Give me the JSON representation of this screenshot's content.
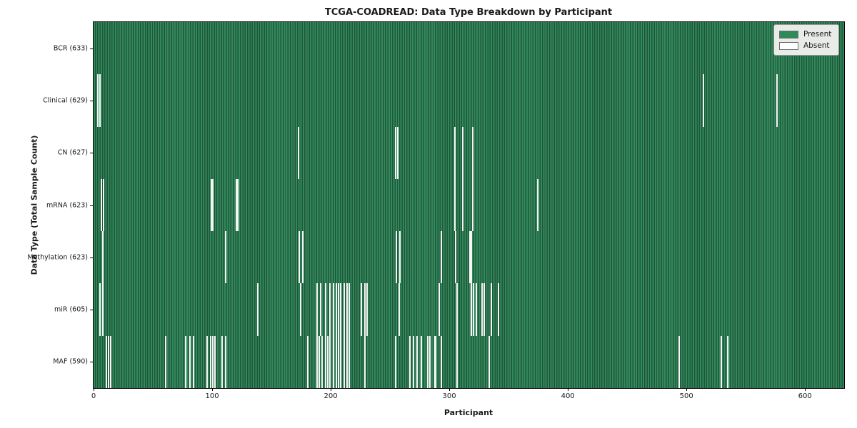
{
  "chart_data": {
    "type": "heatmap",
    "title": "TCGA-COADREAD: Data Type Breakdown by Participant",
    "xlabel": "Participant",
    "ylabel": "Data Type (Total Sample Count)",
    "x_ticks": [
      0,
      100,
      200,
      300,
      400,
      500,
      600
    ],
    "xlim": [
      0,
      633
    ],
    "n_participants": 633,
    "grid": false,
    "legend_position": "upper right",
    "colors": {
      "present": "#2e8b57",
      "present_stripe_light": "#35885e",
      "present_stripe_dark": "#1c5737",
      "absent": "#ffffff",
      "absent_stripe": "#f5f5f5",
      "row_border": "#0d2418"
    },
    "legend": [
      {
        "label": "Present",
        "color": "#2e8b57"
      },
      {
        "label": "Absent",
        "color": "#ffffff"
      }
    ],
    "rows": [
      {
        "name": "BCR",
        "label": "BCR (633)",
        "present_count": 633,
        "absent_count": 0,
        "absent_participants": []
      },
      {
        "name": "Clinical",
        "label": "Clinical (629)",
        "present_count": 629,
        "absent_count": 4,
        "absent_participants": [
          3,
          5,
          514,
          576
        ]
      },
      {
        "name": "CN",
        "label": "CN (627)",
        "present_count": 627,
        "absent_count": 6,
        "absent_participants": [
          172,
          254,
          256,
          304,
          311,
          319
        ]
      },
      {
        "name": "mRNA",
        "label": "mRNA (623)",
        "present_count": 623,
        "absent_count": 10,
        "absent_participants": [
          6,
          8,
          99,
          100,
          120,
          121,
          304,
          311,
          319,
          374
        ]
      },
      {
        "name": "Methylation",
        "label": "Methylation (623)",
        "present_count": 623,
        "absent_count": 10,
        "absent_participants": [
          7,
          111,
          173,
          176,
          255,
          258,
          293,
          305,
          317,
          318
        ]
      },
      {
        "name": "miR",
        "label": "miR (605)",
        "present_count": 605,
        "absent_count": 28,
        "absent_participants": [
          5,
          7,
          138,
          174,
          188,
          191,
          195,
          199,
          202,
          204,
          206,
          208,
          211,
          213,
          215,
          225,
          228,
          230,
          257,
          291,
          306,
          318,
          320,
          322,
          327,
          329,
          335,
          341
        ]
      },
      {
        "name": "MAF",
        "label": "MAF (590)",
        "present_count": 590,
        "absent_count": 43,
        "absent_participants": [
          10,
          12,
          14,
          60,
          77,
          81,
          84,
          95,
          98,
          100,
          102,
          108,
          111,
          180,
          188,
          190,
          192,
          195,
          197,
          199,
          202,
          204,
          206,
          208,
          211,
          213,
          215,
          228,
          254,
          266,
          269,
          272,
          276,
          281,
          283,
          287,
          288,
          293,
          306,
          333,
          493,
          529,
          534
        ]
      }
    ]
  }
}
